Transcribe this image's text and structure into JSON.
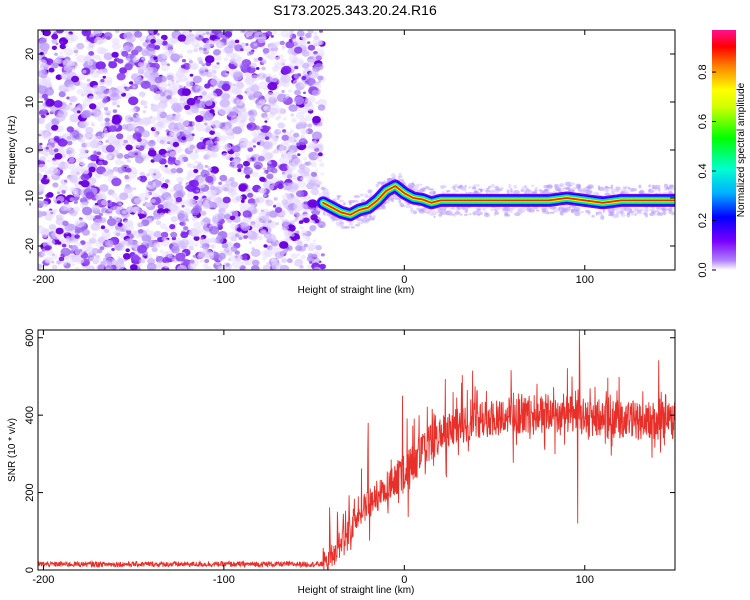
{
  "title": "S173.2025.343.20.24.R16",
  "chart_data": [
    {
      "type": "heatmap",
      "xlabel": "Height of straight line (km)",
      "ylabel": "Frequency (Hz)",
      "xlim": [
        -203,
        150
      ],
      "ylim": [
        -25,
        25
      ],
      "xticks": [
        -200,
        -100,
        0,
        100
      ],
      "yticks": [
        -20,
        -10,
        0,
        10,
        20
      ],
      "colorbar": {
        "label": "Normalized spectral amplitude",
        "ticks": [
          0.0,
          0.2,
          0.4,
          0.6,
          0.8
        ],
        "range": [
          0,
          0.97
        ]
      },
      "noise_region_x": [
        -203,
        -45
      ],
      "signal_track": [
        {
          "x": -45,
          "y": -11.0
        },
        {
          "x": -40,
          "y": -12.0
        },
        {
          "x": -35,
          "y": -13.0
        },
        {
          "x": -30,
          "y": -13.5
        },
        {
          "x": -25,
          "y": -12.5
        },
        {
          "x": -20,
          "y": -12.0
        },
        {
          "x": -15,
          "y": -10.5
        },
        {
          "x": -10,
          "y": -8.5
        },
        {
          "x": -5,
          "y": -7.5
        },
        {
          "x": 0,
          "y": -9.0
        },
        {
          "x": 5,
          "y": -10.0
        },
        {
          "x": 10,
          "y": -10.3
        },
        {
          "x": 15,
          "y": -11.0
        },
        {
          "x": 20,
          "y": -10.5
        },
        {
          "x": 40,
          "y": -10.5
        },
        {
          "x": 60,
          "y": -10.5
        },
        {
          "x": 80,
          "y": -10.5
        },
        {
          "x": 90,
          "y": -10.0
        },
        {
          "x": 100,
          "y": -10.5
        },
        {
          "x": 110,
          "y": -11.0
        },
        {
          "x": 120,
          "y": -10.5
        },
        {
          "x": 135,
          "y": -10.5
        },
        {
          "x": 150,
          "y": -10.5
        }
      ]
    },
    {
      "type": "line",
      "xlabel": "Height of straight line (km)",
      "ylabel": "SNR (10 * v/v)",
      "xlim": [
        -203,
        150
      ],
      "ylim": [
        0,
        620
      ],
      "xticks": [
        -200,
        -100,
        0,
        100
      ],
      "yticks": [
        0,
        200,
        400,
        600
      ],
      "color": "#e8302a",
      "envelope": [
        {
          "x": -203,
          "y": 15
        },
        {
          "x": -45,
          "y": 15
        },
        {
          "x": -35,
          "y": 60
        },
        {
          "x": -25,
          "y": 150
        },
        {
          "x": -15,
          "y": 190
        },
        {
          "x": -5,
          "y": 230
        },
        {
          "x": 5,
          "y": 280
        },
        {
          "x": 15,
          "y": 330
        },
        {
          "x": 25,
          "y": 360
        },
        {
          "x": 40,
          "y": 390
        },
        {
          "x": 60,
          "y": 400
        },
        {
          "x": 80,
          "y": 405
        },
        {
          "x": 100,
          "y": 395
        },
        {
          "x": 120,
          "y": 390
        },
        {
          "x": 140,
          "y": 385
        },
        {
          "x": 150,
          "y": 390
        }
      ],
      "spikes": [
        {
          "x": -20,
          "y": 380
        },
        {
          "x": -1,
          "y": 450
        },
        {
          "x": 97,
          "y": 620
        },
        {
          "x": 96,
          "y": 120
        }
      ]
    }
  ]
}
